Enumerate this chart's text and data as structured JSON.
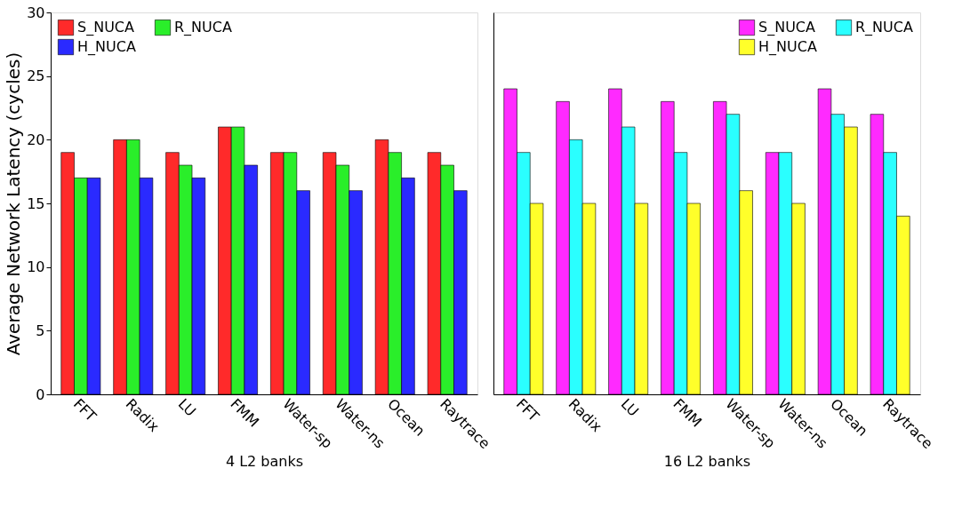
{
  "chart_data": [
    {
      "type": "bar",
      "xlabel": "4 L2  banks",
      "ylabel": "Average Network Latency (cycles)",
      "categories": [
        "FFT",
        "Radix",
        "LU",
        "FMM",
        "Water-sp",
        "Water-ns",
        "Ocean",
        "Raytrace"
      ],
      "ylim": [
        0,
        30
      ],
      "yticks": [
        0,
        5,
        10,
        15,
        20,
        25,
        30
      ],
      "legend": "top left",
      "series": [
        {
          "name": "S_NUCA",
          "color": "#ff2a2a",
          "values": [
            19,
            20,
            19,
            21,
            19,
            19,
            20,
            19
          ]
        },
        {
          "name": "R_NUCA",
          "color": "#2aee2a",
          "values": [
            17,
            20,
            18,
            21,
            19,
            18,
            19,
            18
          ]
        },
        {
          "name": "H_NUCA",
          "color": "#2a2aff",
          "values": [
            17,
            17,
            17,
            18,
            16,
            16,
            17,
            16
          ]
        }
      ]
    },
    {
      "type": "bar",
      "xlabel": "16 L2  banks",
      "categories": [
        "FFT",
        "Radix",
        "LU",
        "FMM",
        "Water-sp",
        "Water-ns",
        "Ocean",
        "Raytrace"
      ],
      "ylim": [
        0,
        30
      ],
      "yticks": [
        0,
        5,
        10,
        15,
        20,
        25,
        30
      ],
      "tick_labels": "x",
      "legend": "top right",
      "series": [
        {
          "name": "S_NUCA",
          "color": "#ff2aff",
          "values": [
            24,
            23,
            24,
            23,
            23,
            19,
            24,
            22
          ]
        },
        {
          "name": "R_NUCA",
          "color": "#2affff",
          "values": [
            19,
            20,
            21,
            19,
            22,
            19,
            22,
            19
          ]
        },
        {
          "name": "H_NUCA",
          "color": "#ffff2a",
          "values": [
            15,
            15,
            15,
            15,
            16,
            15,
            21,
            14
          ]
        }
      ]
    }
  ]
}
